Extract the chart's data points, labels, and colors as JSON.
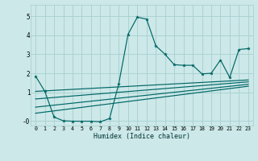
{
  "bg_color": "#cce8e8",
  "grid_color": "#a8cece",
  "line_color": "#006666",
  "xlabel": "Humidex (Indice chaleur)",
  "yticks": [
    -0.5,
    1,
    2,
    3,
    4,
    5
  ],
  "ytick_labels": [
    "-0",
    "1",
    "2",
    "3",
    "4",
    "5"
  ],
  "ylim": [
    -0.75,
    5.6
  ],
  "xlim": [
    -0.5,
    23.5
  ],
  "xticks": [
    0,
    1,
    2,
    3,
    4,
    5,
    6,
    7,
    8,
    9,
    10,
    11,
    12,
    13,
    14,
    15,
    16,
    17,
    18,
    19,
    20,
    21,
    22,
    23
  ],
  "line1_x": [
    0,
    1,
    2,
    3,
    4,
    5,
    6,
    7,
    8,
    9,
    10,
    11,
    12,
    13,
    14,
    15,
    16,
    17,
    18,
    19,
    20,
    21,
    22,
    23
  ],
  "line1_y": [
    1.85,
    1.05,
    -0.3,
    -0.5,
    -0.52,
    -0.52,
    -0.52,
    -0.55,
    -0.38,
    1.45,
    4.05,
    4.95,
    4.85,
    3.45,
    3.0,
    2.45,
    2.42,
    2.42,
    1.97,
    2.0,
    2.7,
    1.78,
    3.25,
    3.3
  ],
  "line2_x": [
    0,
    23
  ],
  "line2_y": [
    1.05,
    1.65
  ],
  "line3_x": [
    0,
    23
  ],
  "line3_y": [
    0.65,
    1.55
  ],
  "line4_x": [
    0,
    23
  ],
  "line4_y": [
    0.22,
    1.42
  ],
  "line5_x": [
    0,
    23
  ],
  "line5_y": [
    -0.1,
    1.32
  ]
}
